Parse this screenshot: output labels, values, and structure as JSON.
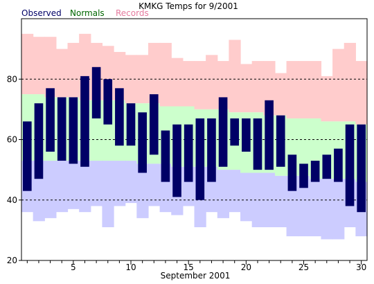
{
  "chart_data": {
    "type": "bar",
    "title": "KMKG Temps for 9/2001",
    "xlabel": "September 2001",
    "ylabel": "",
    "legend": [
      {
        "name": "Observed",
        "color": "#000066"
      },
      {
        "name": "Normals",
        "color": "#006600"
      },
      {
        "name": "Records",
        "color": "#e57a9e"
      }
    ],
    "legend_position": "top",
    "ylim": [
      20,
      100
    ],
    "yticks": [
      20,
      40,
      60,
      80
    ],
    "dashed_gridlines": [
      40,
      60,
      80
    ],
    "xticks": [
      5,
      10,
      15,
      20,
      25,
      30
    ],
    "days": [
      1,
      2,
      3,
      4,
      5,
      6,
      7,
      8,
      9,
      10,
      11,
      12,
      13,
      14,
      15,
      16,
      17,
      18,
      19,
      20,
      21,
      22,
      23,
      24,
      25,
      26,
      27,
      28,
      29,
      30
    ],
    "record_high": [
      95,
      94,
      94,
      90,
      92,
      95,
      92,
      91,
      89,
      88,
      88,
      92,
      92,
      87,
      86,
      86,
      88,
      86,
      93,
      85,
      86,
      86,
      82,
      86,
      86,
      86,
      81,
      90,
      92,
      86
    ],
    "normal_high": [
      75,
      75,
      74,
      74,
      74,
      73,
      73,
      73,
      73,
      72,
      72,
      72,
      71,
      71,
      71,
      70,
      70,
      70,
      69,
      69,
      69,
      68,
      68,
      67,
      67,
      67,
      66,
      66,
      66,
      65
    ],
    "normal_low": [
      53,
      53,
      53,
      53,
      53,
      53,
      53,
      53,
      53,
      53,
      52,
      52,
      52,
      51,
      51,
      51,
      51,
      50,
      50,
      49,
      49,
      49,
      48,
      48,
      48,
      47,
      47,
      47,
      47,
      46
    ],
    "record_low": [
      36,
      33,
      34,
      36,
      37,
      36,
      38,
      31,
      38,
      39,
      34,
      38,
      36,
      35,
      38,
      31,
      36,
      34,
      36,
      33,
      31,
      31,
      31,
      28,
      28,
      28,
      27,
      27,
      31,
      28
    ],
    "observed_high": [
      66,
      72,
      77,
      74,
      74,
      81,
      84,
      80,
      77,
      72,
      69,
      75,
      63,
      65,
      65,
      67,
      67,
      74,
      67,
      67,
      67,
      73,
      68,
      55,
      52,
      53,
      55,
      57,
      65,
      65
    ],
    "observed_low": [
      43,
      47,
      56,
      53,
      52,
      51,
      67,
      65,
      58,
      58,
      49,
      55,
      46,
      41,
      46,
      40,
      46,
      51,
      58,
      56,
      50,
      50,
      51,
      43,
      44,
      46,
      47,
      46,
      38,
      36
    ]
  }
}
